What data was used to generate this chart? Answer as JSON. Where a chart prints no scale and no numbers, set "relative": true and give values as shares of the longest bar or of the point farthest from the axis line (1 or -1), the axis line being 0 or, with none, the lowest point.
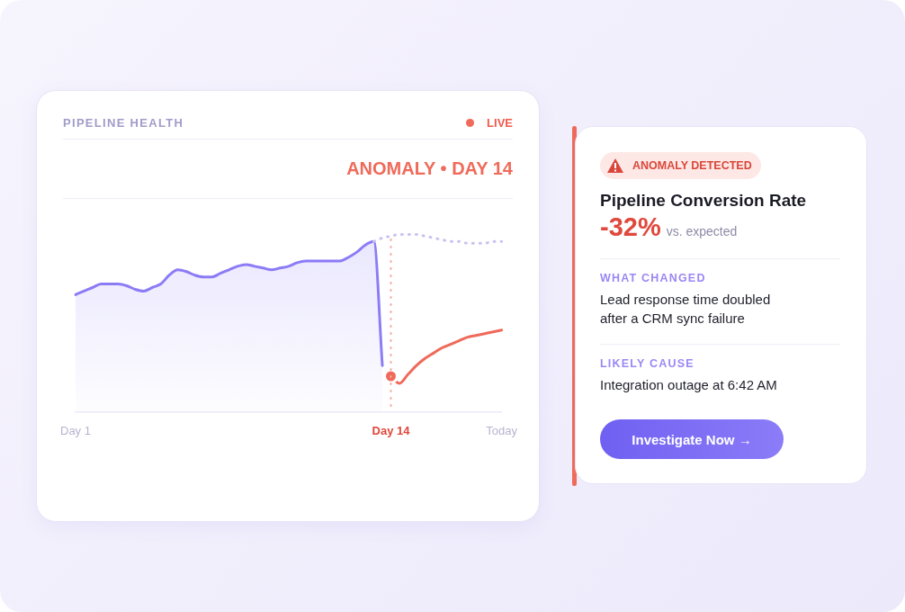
{
  "chart_data": [
    {
      "type": "line",
      "title": "PIPELINE HEALTH",
      "subtitle": "ANOMALY • DAY 14",
      "annotations": [
        "LIVE"
      ],
      "relative": true,
      "legend": false,
      "categories": [
        "Day 1",
        null,
        null,
        null,
        null,
        null,
        null,
        null,
        null,
        null,
        null,
        null,
        null,
        null,
        null,
        null,
        null,
        null,
        null,
        null,
        null,
        null,
        null,
        null,
        null,
        null,
        null,
        null,
        null,
        null,
        null,
        null,
        null,
        null,
        null,
        null,
        null,
        "Day 14",
        null,
        null,
        null,
        null,
        null,
        null,
        null,
        null,
        null,
        null,
        null,
        null,
        "Today"
      ],
      "series": [
        {
          "type": "area",
          "color": "#8b7cf6",
          "marker": "none",
          "line_style": "solid",
          "values": [
            0.66,
            0.68,
            0.7,
            0.72,
            0.72,
            0.72,
            0.71,
            0.69,
            0.68,
            0.7,
            0.72,
            0.77,
            0.8,
            0.79,
            0.77,
            0.76,
            0.76,
            0.78,
            0.8,
            0.82,
            0.83,
            0.82,
            0.81,
            0.8,
            0.81,
            0.82,
            0.84,
            0.85,
            0.85,
            0.85,
            0.85,
            0.85,
            0.87,
            0.9,
            0.94,
            0.96,
            0.26,
            null,
            null,
            null,
            null,
            null,
            null,
            null,
            null,
            null,
            null,
            null,
            null,
            null,
            null
          ]
        },
        {
          "type": "line",
          "color": "#ef6a5a",
          "marker": "none",
          "line_style": "solid",
          "values": [
            null,
            null,
            null,
            null,
            null,
            null,
            null,
            null,
            null,
            null,
            null,
            null,
            null,
            null,
            null,
            null,
            null,
            null,
            null,
            null,
            null,
            null,
            null,
            null,
            null,
            null,
            null,
            null,
            null,
            null,
            null,
            null,
            null,
            null,
            null,
            null,
            null,
            0.2,
            0.16,
            0.21,
            0.26,
            0.3,
            0.33,
            0.36,
            0.38,
            0.4,
            0.42,
            0.43,
            0.44,
            0.45,
            0.46
          ]
        },
        {
          "type": "line",
          "color": "#c9c1f2",
          "marker": "none",
          "line_style": "dotted",
          "values": [
            null,
            null,
            null,
            null,
            null,
            null,
            null,
            null,
            null,
            null,
            null,
            null,
            null,
            null,
            null,
            null,
            null,
            null,
            null,
            null,
            null,
            null,
            null,
            null,
            null,
            null,
            null,
            null,
            null,
            null,
            null,
            null,
            null,
            null,
            null,
            0.96,
            0.98,
            0.99,
            1.0,
            1.0,
            1.0,
            0.99,
            0.98,
            0.97,
            0.96,
            0.96,
            0.95,
            0.95,
            0.95,
            0.96,
            0.96
          ]
        },
        {
          "type": "scatter",
          "color": "#ef6a5a",
          "marker": "circle",
          "x": [
            "Day 14"
          ],
          "values": [
            0.2
          ]
        }
      ],
      "ref_lines": [
        {
          "axis": "x",
          "value": "Day 14",
          "color": "#f2a8a0",
          "line_style": "dotted"
        }
      ]
    },
    {
      "type": "other",
      "title": "Pipeline Conversion Rate",
      "annotations": [
        "ANOMALY DETECTED",
        "-32%",
        "vs. expected",
        "WHAT CHANGED",
        "Lead response time doubled after a CRM sync failure",
        "LIKELY CAUSE",
        "Integration outage at 6:42 AM",
        "Investigate Now →"
      ]
    }
  ]
}
